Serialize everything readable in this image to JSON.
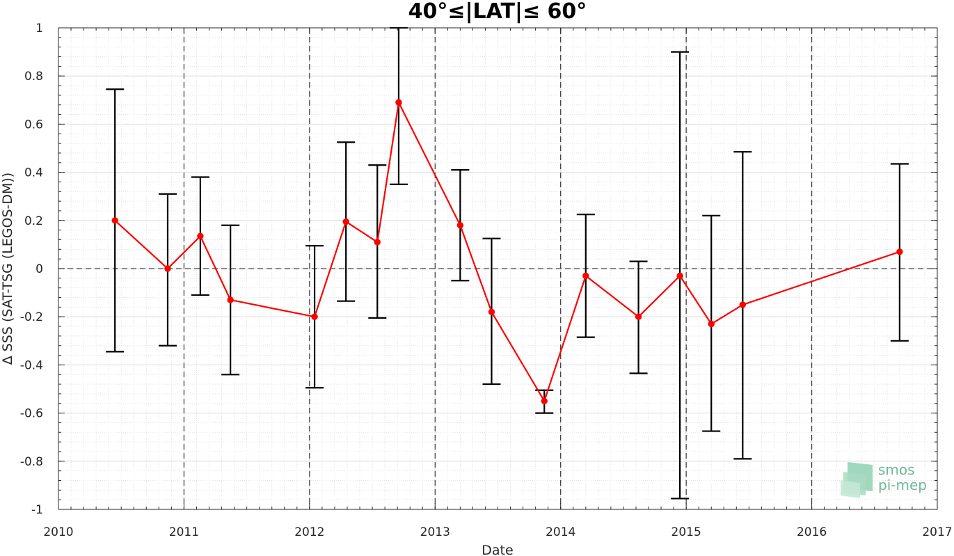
{
  "chart_data": {
    "type": "line",
    "title": "40°≤|LAT|≤ 60°",
    "xlabel": "Date",
    "ylabel": "Δ SSS (SAT-TSG (LEGOS-DM))",
    "xlim": [
      2010,
      2017
    ],
    "ylim": [
      -1,
      1
    ],
    "x_ticks": [
      "2010",
      "2011",
      "2012",
      "2013",
      "2014",
      "2015",
      "2016",
      "2017"
    ],
    "y_ticks": [
      "-1",
      "-0.8",
      "-0.6",
      "-0.4",
      "-0.2",
      "0",
      "0.2",
      "0.4",
      "0.6",
      "0.8",
      "1"
    ],
    "grid": true,
    "minor_grid": true,
    "year_lines": "dashed",
    "zero_line": "dashed",
    "series": [
      {
        "color": "#ff0000",
        "errorbar_color": "#000000",
        "points": [
          {
            "x": 2010.45,
            "y": 0.2,
            "low": -0.345,
            "high": 0.745
          },
          {
            "x": 2010.87,
            "y": 0.0,
            "low": -0.32,
            "high": 0.31
          },
          {
            "x": 2011.13,
            "y": 0.135,
            "low": -0.11,
            "high": 0.38
          },
          {
            "x": 2011.37,
            "y": -0.13,
            "low": -0.44,
            "high": 0.18
          },
          {
            "x": 2012.04,
            "y": -0.2,
            "low": -0.495,
            "high": 0.095
          },
          {
            "x": 2012.29,
            "y": 0.195,
            "low": -0.135,
            "high": 0.525
          },
          {
            "x": 2012.54,
            "y": 0.11,
            "low": -0.205,
            "high": 0.43
          },
          {
            "x": 2012.71,
            "y": 0.69,
            "low": 0.35,
            "high": 1.0
          },
          {
            "x": 2013.2,
            "y": 0.18,
            "low": -0.05,
            "high": 0.41
          },
          {
            "x": 2013.45,
            "y": -0.18,
            "low": -0.48,
            "high": 0.125
          },
          {
            "x": 2013.87,
            "y": -0.55,
            "low": -0.6,
            "high": -0.505
          },
          {
            "x": 2014.2,
            "y": -0.03,
            "low": -0.285,
            "high": 0.225
          },
          {
            "x": 2014.62,
            "y": -0.2,
            "low": -0.435,
            "high": 0.03
          },
          {
            "x": 2014.95,
            "y": -0.03,
            "low": -0.955,
            "high": 0.9
          },
          {
            "x": 2015.2,
            "y": -0.23,
            "low": -0.675,
            "high": 0.22
          },
          {
            "x": 2015.45,
            "y": -0.15,
            "low": -0.79,
            "high": 0.485
          },
          {
            "x": 2016.7,
            "y": 0.07,
            "low": -0.3,
            "high": 0.435
          }
        ]
      }
    ]
  },
  "logo": {
    "line1": "smos",
    "line2": "pi-mep",
    "color": "#6fb896"
  }
}
